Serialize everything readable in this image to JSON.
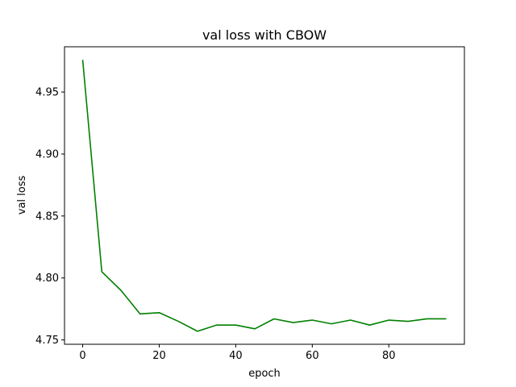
{
  "chart_data": {
    "type": "line",
    "title": "val loss with CBOW",
    "xlabel": "epoch",
    "ylabel": "val loss",
    "xlim": [
      -4.75,
      99.75
    ],
    "ylim": [
      4.7465,
      4.9865
    ],
    "xticks": [
      0,
      20,
      40,
      60,
      80
    ],
    "xtick_labels": [
      "0",
      "20",
      "40",
      "60",
      "80"
    ],
    "yticks": [
      4.75,
      4.8,
      4.85,
      4.9,
      4.95
    ],
    "ytick_labels": [
      "4.75",
      "4.80",
      "4.85",
      "4.90",
      "4.95"
    ],
    "grid": false,
    "series": [
      {
        "color": "#008000",
        "x": [
          0,
          5,
          10,
          15,
          20,
          25,
          30,
          35,
          40,
          45,
          50,
          55,
          60,
          65,
          70,
          75,
          80,
          85,
          90,
          95
        ],
        "y": [
          4.976,
          4.805,
          4.79,
          4.771,
          4.772,
          4.765,
          4.757,
          4.762,
          4.762,
          4.759,
          4.767,
          4.764,
          4.766,
          4.763,
          4.766,
          4.762,
          4.766,
          4.765,
          4.767,
          4.767
        ]
      }
    ]
  }
}
